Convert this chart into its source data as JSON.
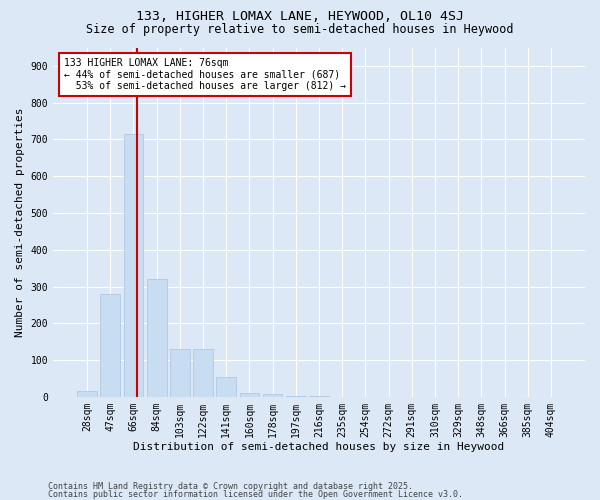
{
  "title_line1": "133, HIGHER LOMAX LANE, HEYWOOD, OL10 4SJ",
  "title_line2": "Size of property relative to semi-detached houses in Heywood",
  "xlabel": "Distribution of semi-detached houses by size in Heywood",
  "ylabel": "Number of semi-detached properties",
  "categories": [
    "28sqm",
    "47sqm",
    "66sqm",
    "84sqm",
    "103sqm",
    "122sqm",
    "141sqm",
    "160sqm",
    "178sqm",
    "197sqm",
    "216sqm",
    "235sqm",
    "254sqm",
    "272sqm",
    "291sqm",
    "310sqm",
    "329sqm",
    "348sqm",
    "366sqm",
    "385sqm",
    "404sqm"
  ],
  "values": [
    15,
    280,
    715,
    320,
    130,
    130,
    55,
    10,
    8,
    2,
    1,
    0,
    0,
    0,
    0,
    0,
    0,
    0,
    0,
    0,
    0
  ],
  "bar_color": "#c9ddf2",
  "bar_edge_color": "#a8c4e0",
  "vline_x": 2.15,
  "vline_color": "#cc0000",
  "annotation_text": "133 HIGHER LOMAX LANE: 76sqm\n← 44% of semi-detached houses are smaller (687)\n  53% of semi-detached houses are larger (812) →",
  "annotation_box_color": "#ffffff",
  "annotation_box_edge": "#cc0000",
  "ylim": [
    0,
    950
  ],
  "yticks": [
    0,
    100,
    200,
    300,
    400,
    500,
    600,
    700,
    800,
    900
  ],
  "footer_line1": "Contains HM Land Registry data © Crown copyright and database right 2025.",
  "footer_line2": "Contains public sector information licensed under the Open Government Licence v3.0.",
  "bg_color": "#dce8f5",
  "plot_bg_color": "#dce8f5",
  "title_fontsize": 9.5,
  "subtitle_fontsize": 8.5,
  "axis_label_fontsize": 8,
  "tick_fontsize": 7,
  "footer_fontsize": 6,
  "annotation_fontsize": 7
}
